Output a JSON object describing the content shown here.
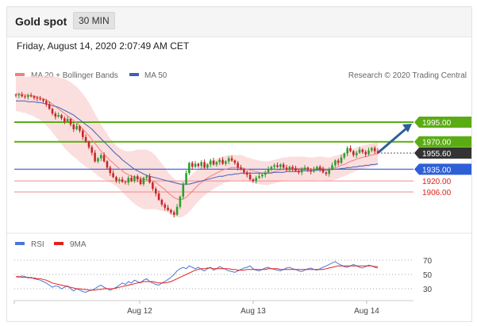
{
  "header": {
    "title": "Gold spot",
    "timeframe": "30 MIN"
  },
  "date_label": "Friday, August 14, 2020 2:07:49 AM CET",
  "legend": {
    "ma20": "MA 20 + Bollinger Bands",
    "ma50": "MA 50",
    "research": "Research © 2020 Trading Central",
    "rsi": "RSI",
    "ma9": "9MA"
  },
  "colors": {
    "green": "#5bac14",
    "blue": "#2e5fd6",
    "red": "#e0201a",
    "bollinger": "#f9d3d3",
    "ma20": "#f08080",
    "ma50": "#3d5fb8",
    "candle_up": "#2e9e2e",
    "candle_down": "#c62828",
    "current": "#333333",
    "arrow": "#2c5f99"
  },
  "levels": {
    "resistance": [
      1995.0,
      1970.0
    ],
    "pivot": 1935.0,
    "support": [
      1920.0,
      1906.0
    ],
    "current": 1955.6
  },
  "level_labels": [
    "1995.00",
    "1970.00",
    "1955.60",
    "1935.00",
    "1920.00",
    "1906.00"
  ],
  "rsi_ticks": [
    "70",
    "50",
    "30"
  ],
  "x_labels": [
    "Aug 12",
    "Aug 13",
    "Aug 14"
  ],
  "chart_data": [
    {
      "type": "candlestick",
      "title": "Gold spot",
      "timeframe": "30 MIN",
      "ylim": [
        1860,
        2040
      ],
      "series": [
        {
          "name": "Price",
          "close": [
            2029,
            2030,
            2028,
            2027,
            2029,
            2028,
            2026,
            2025,
            2024,
            2022,
            2018,
            2012,
            2006,
            2002,
            2004,
            2000,
            1996,
            1999,
            1992,
            1986,
            1990,
            1984,
            1976,
            1970,
            1963,
            1956,
            1945,
            1949,
            1953,
            1945,
            1937,
            1930,
            1925,
            1920,
            1922,
            1919,
            1918,
            1924,
            1920,
            1926,
            1922,
            1916,
            1924,
            1926,
            1918,
            1910,
            1904,
            1896,
            1890,
            1886,
            1883,
            1880,
            1877,
            1887,
            1900,
            1916,
            1930,
            1943,
            1938,
            1942,
            1939,
            1944,
            1937,
            1941,
            1946,
            1941,
            1944,
            1947,
            1942,
            1945,
            1949,
            1946,
            1943,
            1937,
            1935,
            1931,
            1928,
            1922,
            1920,
            1924,
            1926,
            1928,
            1931,
            1935,
            1938,
            1940,
            1938,
            1941,
            1937,
            1934,
            1938,
            1936,
            1933,
            1931,
            1935,
            1937,
            1934,
            1932,
            1935,
            1938,
            1935,
            1931,
            1929,
            1935,
            1940,
            1946,
            1943,
            1950,
            1955,
            1962,
            1958,
            1953,
            1956,
            1960,
            1957,
            1954,
            1959,
            1962,
            1958,
            1955.6
          ]
        },
        {
          "name": "MA 20",
          "values": [
            2031,
            2031,
            2030,
            2030,
            2029,
            2029,
            2028,
            2027,
            2026,
            2025,
            2023,
            2021,
            2018,
            2015,
            2012,
            2009,
            2006,
            2003,
            2000,
            1997,
            1994,
            1990,
            1986,
            1982,
            1978,
            1973,
            1968,
            1963,
            1958,
            1954,
            1950,
            1946,
            1943,
            1939,
            1936,
            1933,
            1930,
            1928,
            1926,
            1925,
            1924,
            1923,
            1922,
            1922,
            1921,
            1920,
            1918,
            1915,
            1912,
            1909,
            1905,
            1902,
            1899,
            1897,
            1896,
            1897,
            1899,
            1903,
            1907,
            1911,
            1915,
            1918,
            1921,
            1924,
            1926,
            1928,
            1930,
            1932,
            1934,
            1935,
            1936,
            1937,
            1937,
            1937,
            1937,
            1936,
            1935,
            1934,
            1933,
            1932,
            1931,
            1930,
            1930,
            1930,
            1931,
            1932,
            1933,
            1934,
            1935,
            1935,
            1936,
            1936,
            1936,
            1936,
            1936,
            1936,
            1935,
            1935,
            1935,
            1936,
            1936,
            1936,
            1935,
            1935,
            1936,
            1937,
            1938,
            1940,
            1941,
            1943,
            1945,
            1946,
            1948,
            1949,
            1950,
            1951,
            1952,
            1953,
            1954,
            1955
          ]
        },
        {
          "name": "MA 50",
          "values": [
            2022,
            2022,
            2022,
            2022,
            2021,
            2021,
            2021,
            2020,
            2020,
            2019,
            2018,
            2017,
            2016,
            2015,
            2014,
            2012,
            2010,
            2008,
            2006,
            2004,
            2001,
            1998,
            1995,
            1992,
            1989,
            1986,
            1982,
            1978,
            1974,
            1970,
            1966,
            1962,
            1958,
            1954,
            1951,
            1947,
            1944,
            1941,
            1938,
            1935,
            1933,
            1931,
            1929,
            1927,
            1926,
            1925,
            1924,
            1923,
            1922,
            1921,
            1920,
            1919,
            1918,
            1917,
            1916,
            1916,
            1916,
            1916,
            1917,
            1918,
            1919,
            1920,
            1921,
            1922,
            1923,
            1924,
            1925,
            1926,
            1926,
            1927,
            1928,
            1928,
            1929,
            1929,
            1930,
            1930,
            1930,
            1930,
            1930,
            1930,
            1930,
            1930,
            1930,
            1930,
            1930,
            1931,
            1931,
            1931,
            1931,
            1932,
            1932,
            1932,
            1932,
            1932,
            1933,
            1933,
            1933,
            1933,
            1933,
            1934,
            1934,
            1934,
            1934,
            1934,
            1935,
            1935,
            1935,
            1936,
            1936,
            1937,
            1937,
            1938,
            1938,
            1939,
            1939,
            1940,
            1940,
            1941,
            1941,
            1942
          ]
        }
      ],
      "bollinger_width": [
        22,
        22,
        23,
        23,
        24,
        25,
        26,
        27,
        28,
        30,
        32,
        34,
        36,
        38,
        40,
        42,
        44,
        45,
        46,
        46,
        46,
        46,
        45,
        44,
        42,
        40,
        38,
        36,
        34,
        32,
        30,
        28,
        27,
        26,
        26,
        27,
        28,
        30,
        32,
        34,
        36,
        37,
        38,
        38,
        37,
        36,
        34,
        32,
        30,
        28,
        26,
        25,
        24,
        23,
        23,
        22,
        22,
        22,
        22,
        21,
        21,
        20,
        20,
        19,
        19,
        18,
        18,
        18,
        17,
        17,
        17,
        16,
        16,
        16,
        16,
        16,
        15,
        15,
        15,
        15,
        15,
        15,
        15,
        15,
        15,
        15,
        15,
        15,
        15,
        15,
        15,
        15,
        15,
        15,
        15,
        15,
        15,
        15,
        15,
        15,
        15,
        15,
        15,
        15,
        15,
        15,
        15,
        15,
        15,
        15,
        15,
        15,
        15,
        15,
        15,
        15,
        15,
        15,
        15,
        15
      ],
      "forecast_target": 1995.0,
      "x_labels": [
        "Aug 12",
        "Aug 13",
        "Aug 14"
      ]
    },
    {
      "type": "line",
      "title": "RSI",
      "ylim": [
        20,
        80
      ],
      "y_ticks": [
        70,
        50,
        30
      ],
      "series": [
        {
          "name": "RSI",
          "values": [
            47,
            46,
            48,
            47,
            45,
            46,
            44,
            43,
            42,
            40,
            38,
            35,
            32,
            34,
            33,
            30,
            32,
            34,
            30,
            27,
            30,
            28,
            26,
            25,
            27,
            28,
            30,
            33,
            35,
            32,
            30,
            28,
            30,
            32,
            35,
            38,
            36,
            40,
            38,
            42,
            40,
            38,
            42,
            44,
            40,
            38,
            36,
            35,
            38,
            40,
            43,
            46,
            50,
            55,
            58,
            60,
            58,
            62,
            60,
            58,
            60,
            57,
            55,
            58,
            60,
            56,
            58,
            61,
            59,
            57,
            55,
            54,
            53,
            55,
            57,
            59,
            60,
            62,
            58,
            56,
            55,
            57,
            59,
            60,
            58,
            57,
            56,
            55,
            57,
            59,
            60,
            58,
            57,
            55,
            54,
            56,
            58,
            59,
            57,
            56,
            58,
            60,
            62,
            64,
            66,
            68,
            65,
            63,
            61,
            60,
            62,
            64,
            62,
            60,
            59,
            61,
            63,
            62,
            60,
            59
          ]
        },
        {
          "name": "9MA",
          "values": [
            47,
            47,
            46,
            46,
            46,
            45,
            45,
            44,
            44,
            43,
            42,
            40,
            38,
            37,
            36,
            35,
            34,
            33,
            32,
            31,
            30,
            30,
            29,
            29,
            28,
            28,
            28,
            29,
            29,
            30,
            30,
            30,
            30,
            31,
            32,
            33,
            34,
            35,
            36,
            37,
            38,
            39,
            40,
            40,
            40,
            40,
            39,
            38,
            38,
            38,
            39,
            40,
            42,
            44,
            46,
            48,
            50,
            52,
            54,
            56,
            57,
            58,
            58,
            59,
            59,
            58,
            58,
            58,
            58,
            58,
            58,
            57,
            57,
            56,
            56,
            56,
            57,
            57,
            57,
            57,
            57,
            57,
            57,
            58,
            58,
            58,
            58,
            57,
            57,
            57,
            57,
            57,
            57,
            57,
            57,
            57,
            57,
            57,
            57,
            57,
            57,
            57,
            58,
            59,
            60,
            61,
            62,
            62,
            62,
            62,
            62,
            62,
            62,
            62,
            62,
            62,
            62,
            62,
            61,
            61
          ]
        }
      ],
      "x_labels": [
        "Aug 12",
        "Aug 13",
        "Aug 14"
      ]
    }
  ]
}
